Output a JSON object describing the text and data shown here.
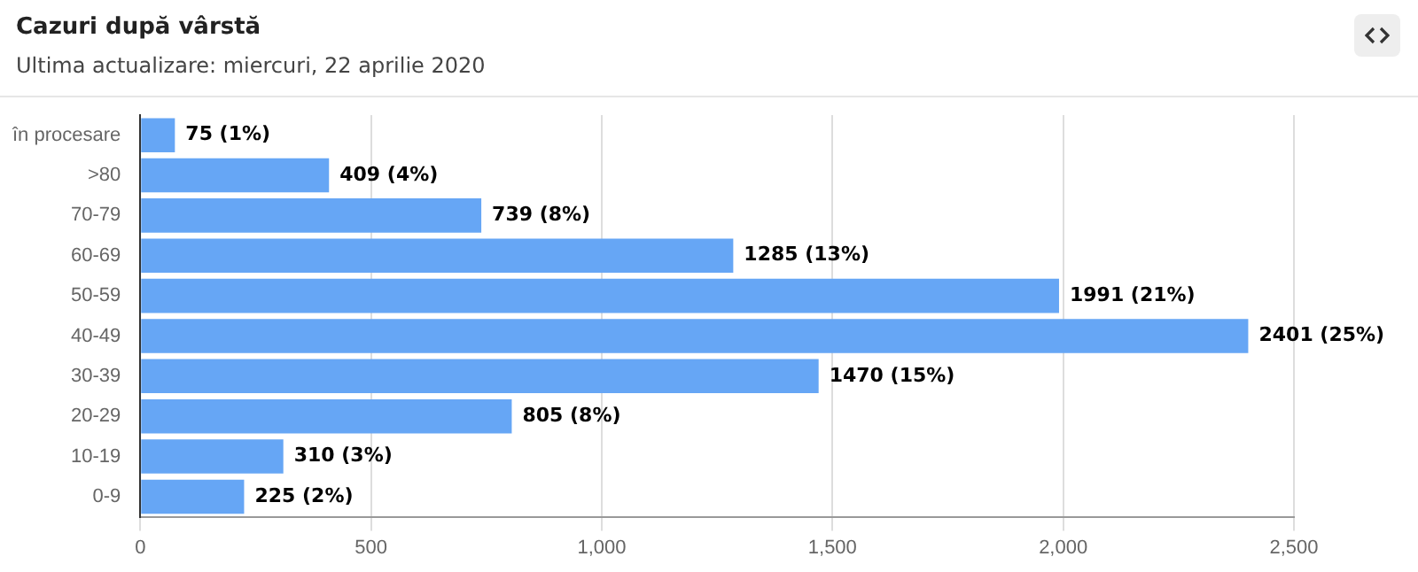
{
  "chart_data": {
    "type": "bar",
    "orientation": "horizontal",
    "title": "Cazuri după vârstă",
    "subtitle": "Ultima actualizare: miercuri, 22 aprilie 2020",
    "categories": [
      "în procesare",
      ">80",
      "70-79",
      "60-69",
      "50-59",
      "40-49",
      "30-39",
      "20-29",
      "10-19",
      "0-9"
    ],
    "values": [
      75,
      409,
      739,
      1285,
      1991,
      2401,
      1470,
      805,
      310,
      225
    ],
    "value_labels": [
      "75 (1%)",
      "409 (4%)",
      "739 (8%)",
      "1285 (13%)",
      "1991 (21%)",
      "2401 (25%)",
      "1470 (15%)",
      "805 (8%)",
      "310 (3%)",
      "225 (2%)"
    ],
    "color": "#66a6f5",
    "xlim": [
      0,
      2500
    ],
    "xticks": [
      0,
      500,
      {
        "value": 1000,
        "label": "1,000"
      },
      {
        "value": 1500,
        "label": "1,500"
      },
      {
        "value": 2000,
        "label": "2,000"
      },
      {
        "value": 2500,
        "label": "2,500"
      }
    ],
    "grid": "x"
  }
}
